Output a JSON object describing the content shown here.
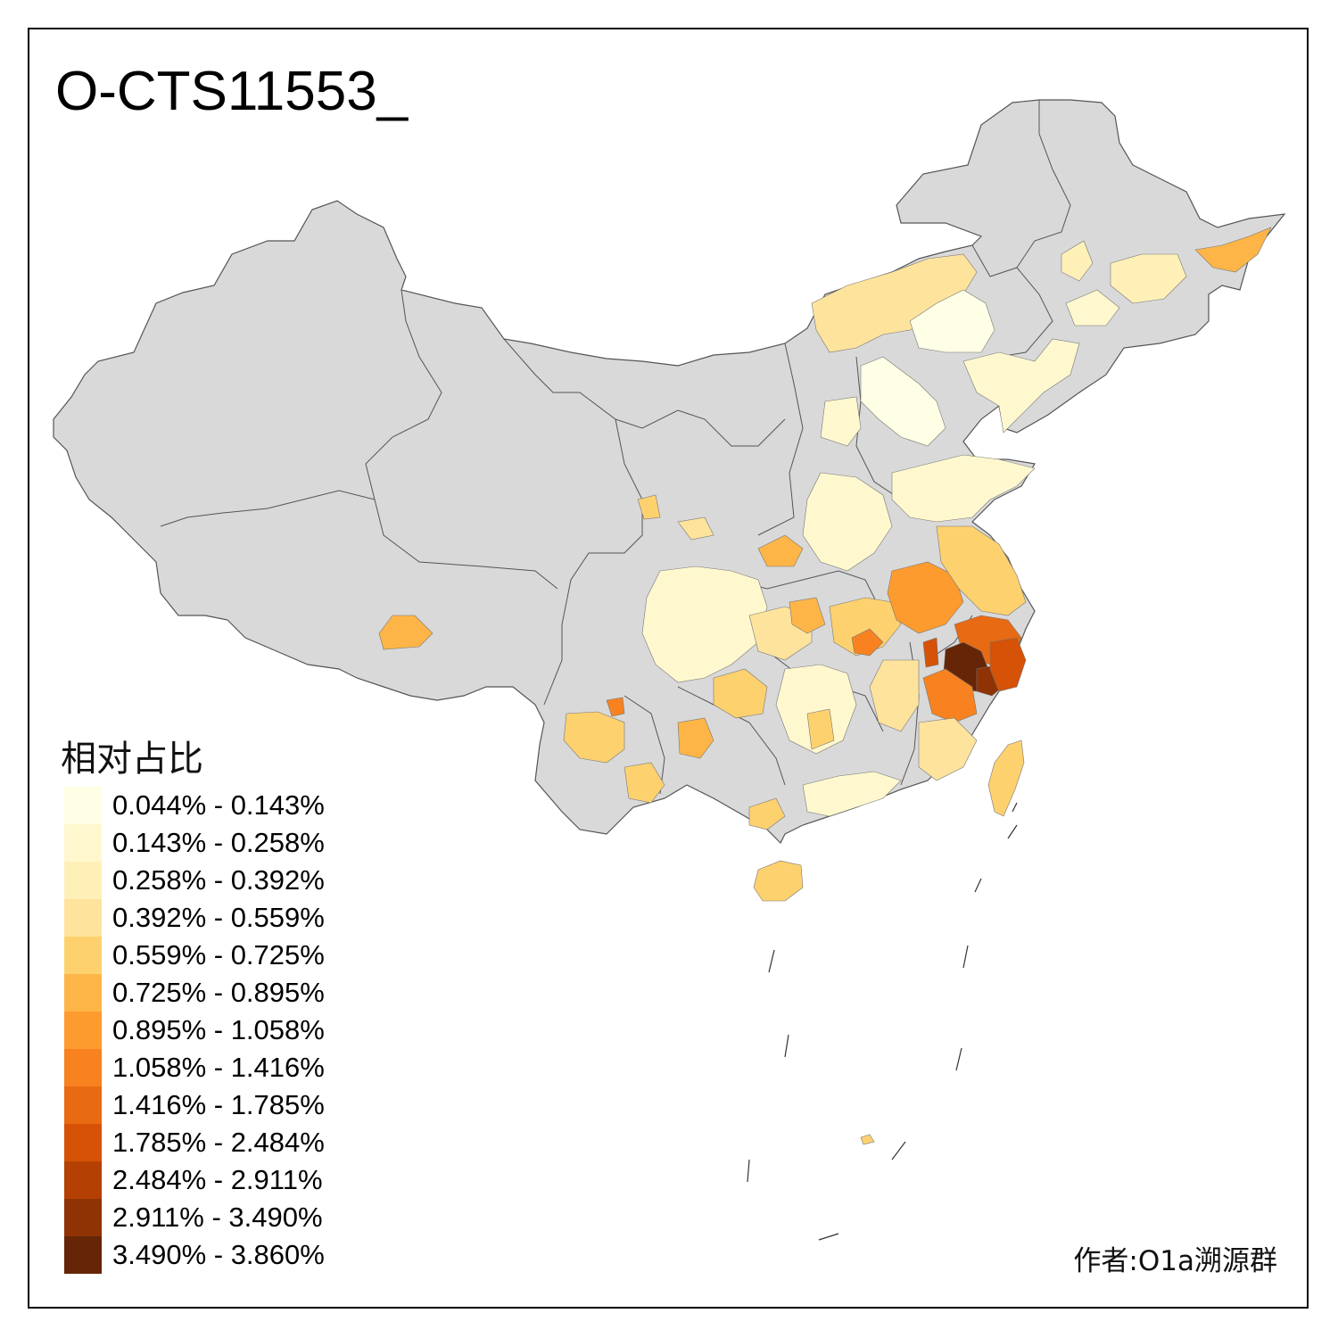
{
  "title": "O-CTS11553_",
  "legend": {
    "title": "相对占比",
    "items": [
      {
        "label": "0.044% - 0.143%",
        "color": "#FFFFE5"
      },
      {
        "label": "0.143% - 0.258%",
        "color": "#FFF8CF"
      },
      {
        "label": "0.258% - 0.392%",
        "color": "#FFF0B8"
      },
      {
        "label": "0.392% - 0.559%",
        "color": "#FEE39D"
      },
      {
        "label": "0.559% - 0.725%",
        "color": "#FED16F"
      },
      {
        "label": "0.725% - 0.895%",
        "color": "#FEB547"
      },
      {
        "label": "0.895% - 1.058%",
        "color": "#FE9B2E"
      },
      {
        "label": "1.058% - 1.416%",
        "color": "#F7821F"
      },
      {
        "label": "1.416% - 1.785%",
        "color": "#E86A12"
      },
      {
        "label": "1.785% - 2.484%",
        "color": "#D55206"
      },
      {
        "label": "2.484% - 2.911%",
        "color": "#B54003"
      },
      {
        "label": "2.911% - 3.490%",
        "color": "#8F3204"
      },
      {
        "label": "3.490% - 3.860%",
        "color": "#662506"
      }
    ]
  },
  "colors": {
    "no_data": "#D9D9D9",
    "border": "#555555"
  },
  "credit": "作者:O1a溯源群"
}
